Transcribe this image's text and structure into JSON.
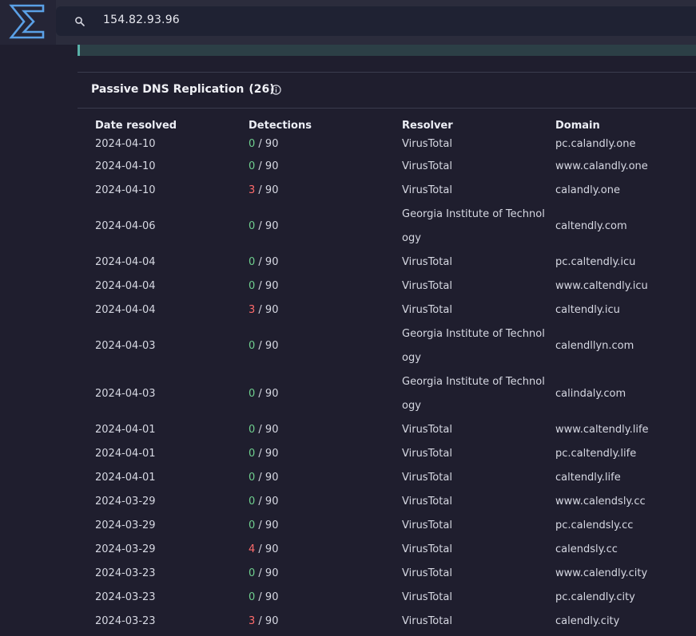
{
  "search": {
    "value": "154.82.93.96",
    "icon": "search-icon"
  },
  "logo": {
    "icon": "logo-chevron-icon"
  },
  "section": {
    "title": "Passive DNS Replication",
    "count": "(26)",
    "info_icon": "info-icon"
  },
  "table": {
    "headers": [
      "Date resolved",
      "Detections",
      "Resolver",
      "Domain"
    ],
    "rows": [
      {
        "date": "2024-04-10",
        "det": "0",
        "total": " / 90",
        "resolver": "VirusTotal",
        "domain": "pc.calandly.one"
      },
      {
        "date": "2024-04-10",
        "det": "0",
        "total": " / 90",
        "resolver": "VirusTotal",
        "domain": "www.calandly.one"
      },
      {
        "date": "2024-04-10",
        "det": "3",
        "total": " / 90",
        "resolver": "VirusTotal",
        "domain": "calandly.one"
      },
      {
        "date": "2024-04-06",
        "det": "0",
        "total": " / 90",
        "resolver": "Georgia Institute of Technology",
        "domain": "caltendly.com"
      },
      {
        "date": "2024-04-04",
        "det": "0",
        "total": " / 90",
        "resolver": "VirusTotal",
        "domain": "pc.caltendly.icu"
      },
      {
        "date": "2024-04-04",
        "det": "0",
        "total": " / 90",
        "resolver": "VirusTotal",
        "domain": "www.caltendly.icu"
      },
      {
        "date": "2024-04-04",
        "det": "3",
        "total": " / 90",
        "resolver": "VirusTotal",
        "domain": "caltendly.icu"
      },
      {
        "date": "2024-04-03",
        "det": "0",
        "total": " / 90",
        "resolver": "Georgia Institute of Technology",
        "domain": "calendllyn.com"
      },
      {
        "date": "2024-04-03",
        "det": "0",
        "total": " / 90",
        "resolver": "Georgia Institute of Technology",
        "domain": "calindaly.com"
      },
      {
        "date": "2024-04-01",
        "det": "0",
        "total": " / 90",
        "resolver": "VirusTotal",
        "domain": "www.caltendly.life"
      },
      {
        "date": "2024-04-01",
        "det": "0",
        "total": " / 90",
        "resolver": "VirusTotal",
        "domain": "pc.caltendly.life"
      },
      {
        "date": "2024-04-01",
        "det": "0",
        "total": " / 90",
        "resolver": "VirusTotal",
        "domain": "caltendly.life"
      },
      {
        "date": "2024-03-29",
        "det": "0",
        "total": " / 90",
        "resolver": "VirusTotal",
        "domain": "www.calendsly.cc"
      },
      {
        "date": "2024-03-29",
        "det": "0",
        "total": " / 90",
        "resolver": "VirusTotal",
        "domain": "pc.calendsly.cc"
      },
      {
        "date": "2024-03-29",
        "det": "4",
        "total": " / 90",
        "resolver": "VirusTotal",
        "domain": "calendsly.cc"
      },
      {
        "date": "2024-03-23",
        "det": "0",
        "total": " / 90",
        "resolver": "VirusTotal",
        "domain": "www.calendly.city"
      },
      {
        "date": "2024-03-23",
        "det": "0",
        "total": " / 90",
        "resolver": "VirusTotal",
        "domain": "pc.calendly.city"
      },
      {
        "date": "2024-03-23",
        "det": "3",
        "total": " / 90",
        "resolver": "VirusTotal",
        "domain": "calendly.city"
      }
    ]
  },
  "colors": {
    "background": "#1f1e2e",
    "detection_zero": "#6fcf8e",
    "detection_positive": "#ff6b6b",
    "accent": "#59b0a8"
  }
}
